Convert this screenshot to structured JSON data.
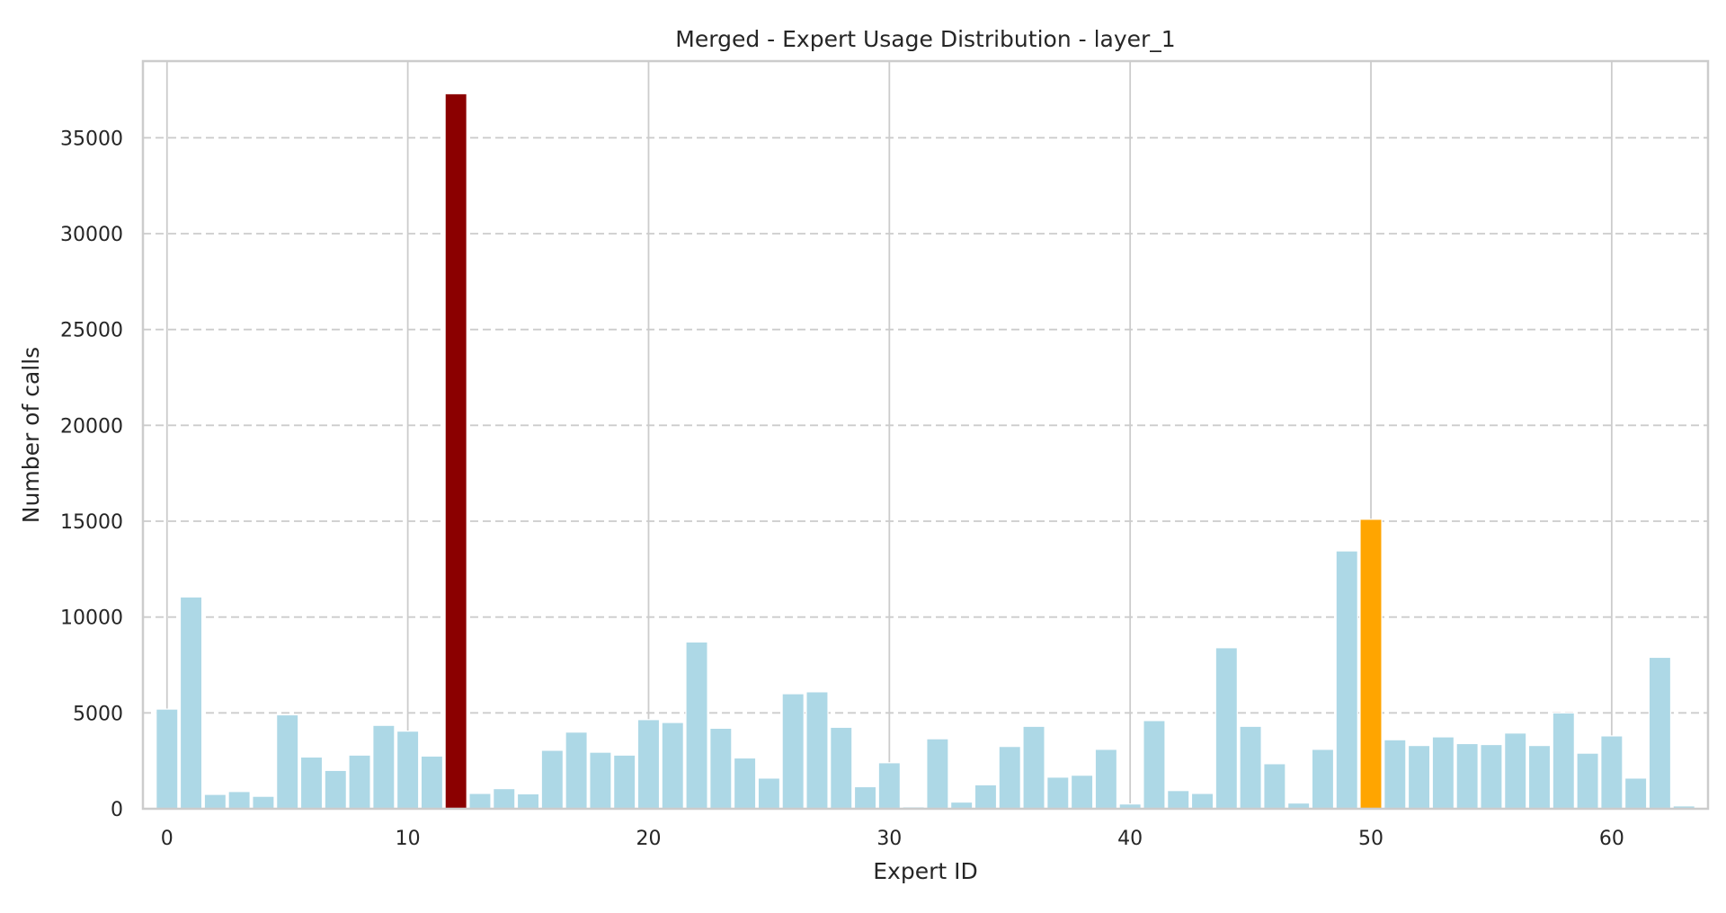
{
  "chart_data": {
    "type": "bar",
    "title": "Merged - Expert Usage Distribution - layer_1",
    "xlabel": "Expert ID",
    "ylabel": "Number of calls",
    "xlim": [
      -1,
      64
    ],
    "ylim": [
      0,
      39000
    ],
    "x_ticks": [
      0,
      10,
      20,
      30,
      40,
      50,
      60
    ],
    "y_ticks": [
      0,
      5000,
      10000,
      15000,
      20000,
      25000,
      30000,
      35000
    ],
    "grid": "vertical solid at x ticks, horizontal dashed at y ticks",
    "legend": "none",
    "colors": {
      "default": "#add8e6",
      "max": "#8b0000",
      "second": "#ffa500"
    },
    "highlight": {
      "max_expert": 12,
      "second_expert": 50
    },
    "categories": [
      0,
      1,
      2,
      3,
      4,
      5,
      6,
      7,
      8,
      9,
      10,
      11,
      12,
      13,
      14,
      15,
      16,
      17,
      18,
      19,
      20,
      21,
      22,
      23,
      24,
      25,
      26,
      27,
      28,
      29,
      30,
      31,
      32,
      33,
      34,
      35,
      36,
      37,
      38,
      39,
      40,
      41,
      42,
      43,
      44,
      45,
      46,
      47,
      48,
      49,
      50,
      51,
      52,
      53,
      54,
      55,
      56,
      57,
      58,
      59,
      60,
      61,
      62,
      63
    ],
    "values": [
      5200,
      11050,
      750,
      900,
      650,
      4900,
      2700,
      2000,
      2800,
      4350,
      4050,
      2750,
      37300,
      800,
      1050,
      780,
      3050,
      4000,
      2950,
      2800,
      4650,
      4500,
      8700,
      4200,
      2650,
      1600,
      6000,
      6100,
      4250,
      1150,
      2400,
      100,
      3650,
      350,
      1250,
      3250,
      4300,
      1650,
      1750,
      3100,
      250,
      4600,
      950,
      800,
      8400,
      4300,
      2350,
      300,
      3100,
      13450,
      15100,
      3600,
      3300,
      3750,
      3400,
      3350,
      3950,
      3300,
      5000,
      2900,
      3800,
      1600,
      7900,
      150
    ]
  }
}
